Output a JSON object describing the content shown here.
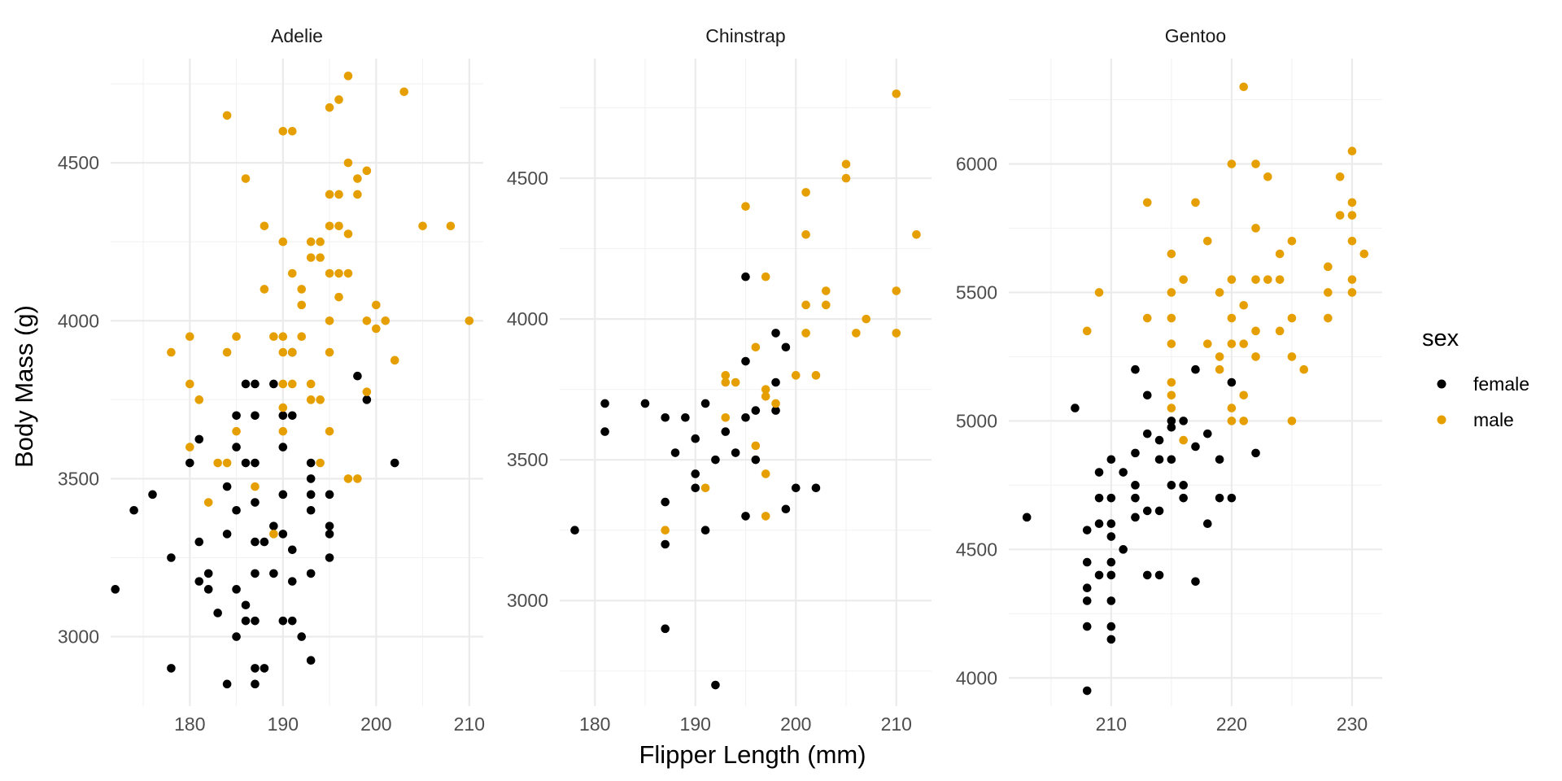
{
  "chart_data": {
    "type": "scatter",
    "facet_by": "species",
    "xlabel": "Flipper Length (mm)",
    "ylabel": "Body Mass (g)",
    "grid": true,
    "scales": "free",
    "legend": {
      "title": "sex",
      "position": "right",
      "entries": [
        {
          "label": "female",
          "color": "#000000"
        },
        {
          "label": "male",
          "color": "#E69F00"
        }
      ]
    },
    "panels": [
      {
        "title": "Adelie",
        "xlim": [
          171.5,
          211.5
        ],
        "ylim": [
          2780,
          4830
        ],
        "xticks": [
          180,
          190,
          200,
          210
        ],
        "yticks": [
          3000,
          3500,
          4000,
          4500
        ],
        "female": [
          [
            172,
            3150
          ],
          [
            174,
            3400
          ],
          [
            176,
            3450
          ],
          [
            178,
            3250
          ],
          [
            178,
            2900
          ],
          [
            180,
            3550
          ],
          [
            181,
            3625
          ],
          [
            181,
            3300
          ],
          [
            181,
            3175
          ],
          [
            182,
            3150
          ],
          [
            182,
            3200
          ],
          [
            183,
            3075
          ],
          [
            184,
            3475
          ],
          [
            184,
            3325
          ],
          [
            184,
            2850
          ],
          [
            185,
            3700
          ],
          [
            185,
            3600
          ],
          [
            185,
            3400
          ],
          [
            185,
            3150
          ],
          [
            185,
            3000
          ],
          [
            186,
            3800
          ],
          [
            186,
            3550
          ],
          [
            186,
            3100
          ],
          [
            186,
            3050
          ],
          [
            187,
            3800
          ],
          [
            187,
            3700
          ],
          [
            187,
            3550
          ],
          [
            187,
            3425
          ],
          [
            187,
            3300
          ],
          [
            187,
            3200
          ],
          [
            187,
            3050
          ],
          [
            187,
            2900
          ],
          [
            188,
            3300
          ],
          [
            188,
            2900
          ],
          [
            189,
            3800
          ],
          [
            189,
            3350
          ],
          [
            189,
            3200
          ],
          [
            190,
            3700
          ],
          [
            190,
            3600
          ],
          [
            190,
            3450
          ],
          [
            190,
            3325
          ],
          [
            190,
            3050
          ],
          [
            191,
            3900
          ],
          [
            191,
            3700
          ],
          [
            191,
            3275
          ],
          [
            191,
            3175
          ],
          [
            191,
            3050
          ],
          [
            192,
            3000
          ],
          [
            193,
            3500
          ],
          [
            193,
            3450
          ],
          [
            193,
            3400
          ],
          [
            193,
            3200
          ],
          [
            193,
            2925
          ],
          [
            195,
            3450
          ],
          [
            195,
            3350
          ],
          [
            195,
            3325
          ],
          [
            195,
            3250
          ],
          [
            198,
            3825
          ],
          [
            199,
            3750
          ],
          [
            202,
            3550
          ],
          [
            193,
            3550
          ],
          [
            187,
            2850
          ]
        ],
        "male": [
          [
            178,
            3900
          ],
          [
            180,
            3950
          ],
          [
            180,
            3800
          ],
          [
            180,
            3600
          ],
          [
            181,
            3750
          ],
          [
            182,
            3425
          ],
          [
            183,
            3550
          ],
          [
            184,
            3550
          ],
          [
            184,
            3900
          ],
          [
            184,
            4650
          ],
          [
            185,
            3950
          ],
          [
            185,
            3650
          ],
          [
            186,
            4450
          ],
          [
            188,
            4100
          ],
          [
            188,
            4300
          ],
          [
            189,
            3950
          ],
          [
            189,
            3325
          ],
          [
            190,
            4600
          ],
          [
            190,
            4250
          ],
          [
            190,
            3950
          ],
          [
            190,
            3900
          ],
          [
            190,
            3800
          ],
          [
            190,
            3725
          ],
          [
            190,
            3650
          ],
          [
            191,
            4600
          ],
          [
            191,
            4150
          ],
          [
            191,
            3900
          ],
          [
            191,
            3800
          ],
          [
            192,
            4100
          ],
          [
            192,
            4050
          ],
          [
            192,
            3950
          ],
          [
            193,
            4250
          ],
          [
            193,
            4200
          ],
          [
            193,
            3800
          ],
          [
            193,
            3750
          ],
          [
            194,
            4250
          ],
          [
            194,
            4200
          ],
          [
            194,
            3750
          ],
          [
            194,
            3550
          ],
          [
            195,
            4675
          ],
          [
            195,
            4400
          ],
          [
            195,
            4300
          ],
          [
            195,
            4150
          ],
          [
            195,
            4000
          ],
          [
            195,
            3900
          ],
          [
            195,
            3650
          ],
          [
            196,
            4700
          ],
          [
            196,
            4400
          ],
          [
            196,
            4300
          ],
          [
            196,
            4150
          ],
          [
            196,
            4075
          ],
          [
            197,
            4775
          ],
          [
            197,
            4500
          ],
          [
            197,
            4275
          ],
          [
            197,
            4150
          ],
          [
            197,
            3500
          ],
          [
            198,
            4450
          ],
          [
            198,
            4400
          ],
          [
            198,
            3500
          ],
          [
            199,
            4475
          ],
          [
            199,
            4000
          ],
          [
            199,
            3775
          ],
          [
            200,
            4050
          ],
          [
            200,
            3975
          ],
          [
            201,
            4000
          ],
          [
            202,
            3875
          ],
          [
            203,
            4725
          ],
          [
            205,
            4300
          ],
          [
            208,
            4300
          ],
          [
            210,
            4000
          ],
          [
            187,
            3475
          ]
        ]
      },
      {
        "title": "Chinstrap",
        "xlim": [
          176.5,
          213.5
        ],
        "ylim": [
          2625,
          4925
        ],
        "xticks": [
          180,
          190,
          200,
          210
        ],
        "yticks": [
          3000,
          3500,
          4000,
          4500
        ],
        "female": [
          [
            178,
            3250
          ],
          [
            181,
            3700
          ],
          [
            181,
            3600
          ],
          [
            185,
            3700
          ],
          [
            187,
            3650
          ],
          [
            187,
            3350
          ],
          [
            187,
            3200
          ],
          [
            187,
            2900
          ],
          [
            188,
            3525
          ],
          [
            189,
            3650
          ],
          [
            190,
            3575
          ],
          [
            190,
            3450
          ],
          [
            190,
            3400
          ],
          [
            191,
            3700
          ],
          [
            191,
            3250
          ],
          [
            192,
            3500
          ],
          [
            192,
            2700
          ],
          [
            193,
            3600
          ],
          [
            194,
            3525
          ],
          [
            195,
            4150
          ],
          [
            195,
            3850
          ],
          [
            195,
            3650
          ],
          [
            195,
            3300
          ],
          [
            196,
            3675
          ],
          [
            196,
            3500
          ],
          [
            198,
            3950
          ],
          [
            198,
            3775
          ],
          [
            198,
            3675
          ],
          [
            199,
            3900
          ],
          [
            199,
            3325
          ],
          [
            200,
            3400
          ],
          [
            202,
            3400
          ]
        ],
        "male": [
          [
            187,
            3250
          ],
          [
            191,
            3400
          ],
          [
            193,
            3800
          ],
          [
            193,
            3775
          ],
          [
            193,
            3650
          ],
          [
            194,
            3775
          ],
          [
            195,
            4400
          ],
          [
            196,
            3900
          ],
          [
            196,
            3550
          ],
          [
            197,
            4150
          ],
          [
            197,
            3750
          ],
          [
            197,
            3725
          ],
          [
            197,
            3450
          ],
          [
            197,
            3300
          ],
          [
            198,
            3700
          ],
          [
            200,
            3800
          ],
          [
            201,
            4450
          ],
          [
            201,
            4300
          ],
          [
            201,
            4050
          ],
          [
            201,
            3950
          ],
          [
            202,
            3800
          ],
          [
            203,
            4100
          ],
          [
            203,
            4050
          ],
          [
            205,
            4550
          ],
          [
            205,
            4500
          ],
          [
            206,
            3950
          ],
          [
            207,
            4000
          ],
          [
            210,
            4800
          ],
          [
            210,
            4100
          ],
          [
            210,
            3950
          ],
          [
            212,
            4300
          ]
        ]
      },
      {
        "title": "Gentoo",
        "xlim": [
          201.5,
          232.5
        ],
        "ylim": [
          3890,
          6410
        ],
        "xticks": [
          210,
          220,
          230
        ],
        "yticks": [
          4000,
          4500,
          5000,
          5500,
          6000
        ],
        "female": [
          [
            203,
            4625
          ],
          [
            207,
            5050
          ],
          [
            208,
            4575
          ],
          [
            208,
            4450
          ],
          [
            208,
            4350
          ],
          [
            208,
            4300
          ],
          [
            208,
            4200
          ],
          [
            208,
            3950
          ],
          [
            209,
            4800
          ],
          [
            209,
            4700
          ],
          [
            209,
            4600
          ],
          [
            209,
            4400
          ],
          [
            210,
            4850
          ],
          [
            210,
            4700
          ],
          [
            210,
            4600
          ],
          [
            210,
            4550
          ],
          [
            210,
            4450
          ],
          [
            210,
            4400
          ],
          [
            210,
            4300
          ],
          [
            210,
            4200
          ],
          [
            210,
            4150
          ],
          [
            211,
            4800
          ],
          [
            211,
            4500
          ],
          [
            212,
            5200
          ],
          [
            212,
            4875
          ],
          [
            212,
            4750
          ],
          [
            212,
            4700
          ],
          [
            212,
            4625
          ],
          [
            213,
            5100
          ],
          [
            213,
            4950
          ],
          [
            213,
            4650
          ],
          [
            213,
            4400
          ],
          [
            214,
            4925
          ],
          [
            214,
            4850
          ],
          [
            214,
            4650
          ],
          [
            214,
            4400
          ],
          [
            215,
            5000
          ],
          [
            215,
            4975
          ],
          [
            215,
            4850
          ],
          [
            215,
            4750
          ],
          [
            216,
            5000
          ],
          [
            216,
            4750
          ],
          [
            216,
            4700
          ],
          [
            217,
            5200
          ],
          [
            217,
            4900
          ],
          [
            217,
            4375
          ],
          [
            218,
            4950
          ],
          [
            218,
            4600
          ],
          [
            219,
            4850
          ],
          [
            219,
            4700
          ],
          [
            220,
            5150
          ],
          [
            220,
            4700
          ],
          [
            222,
            4875
          ]
        ],
        "male": [
          [
            208,
            5350
          ],
          [
            209,
            5500
          ],
          [
            213,
            5850
          ],
          [
            213,
            5400
          ],
          [
            215,
            5650
          ],
          [
            215,
            5500
          ],
          [
            215,
            5400
          ],
          [
            215,
            5300
          ],
          [
            215,
            5150
          ],
          [
            215,
            5100
          ],
          [
            215,
            5050
          ],
          [
            216,
            5550
          ],
          [
            216,
            4925
          ],
          [
            217,
            5850
          ],
          [
            218,
            5700
          ],
          [
            218,
            5300
          ],
          [
            219,
            5500
          ],
          [
            219,
            5250
          ],
          [
            219,
            5200
          ],
          [
            220,
            6000
          ],
          [
            220,
            5550
          ],
          [
            220,
            5400
          ],
          [
            220,
            5300
          ],
          [
            220,
            5050
          ],
          [
            220,
            5000
          ],
          [
            221,
            6300
          ],
          [
            221,
            5450
          ],
          [
            221,
            5300
          ],
          [
            221,
            5100
          ],
          [
            221,
            5000
          ],
          [
            222,
            6000
          ],
          [
            222,
            5750
          ],
          [
            222,
            5550
          ],
          [
            222,
            5350
          ],
          [
            222,
            5250
          ],
          [
            223,
            5950
          ],
          [
            223,
            5550
          ],
          [
            224,
            5650
          ],
          [
            224,
            5550
          ],
          [
            224,
            5350
          ],
          [
            225,
            5700
          ],
          [
            225,
            5400
          ],
          [
            225,
            5250
          ],
          [
            225,
            5000
          ],
          [
            226,
            5200
          ],
          [
            228,
            5600
          ],
          [
            228,
            5500
          ],
          [
            228,
            5400
          ],
          [
            229,
            5950
          ],
          [
            229,
            5800
          ],
          [
            230,
            6050
          ],
          [
            230,
            5850
          ],
          [
            230,
            5800
          ],
          [
            230,
            5700
          ],
          [
            230,
            5550
          ],
          [
            230,
            5500
          ],
          [
            231,
            5650
          ]
        ]
      }
    ]
  }
}
